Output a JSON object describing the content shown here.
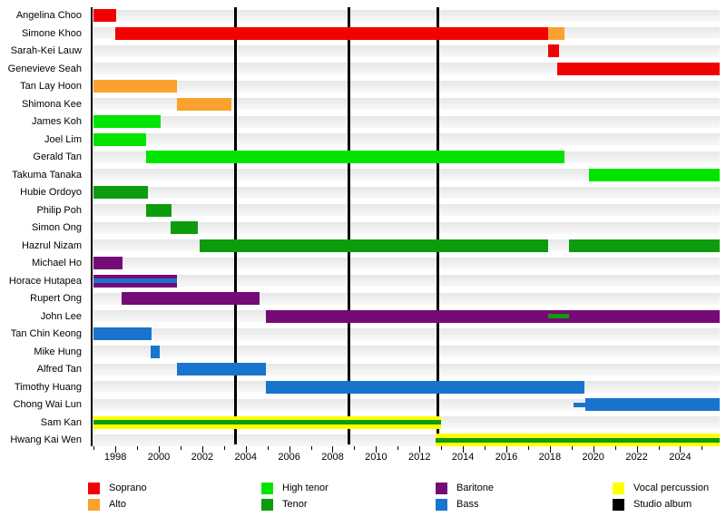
{
  "chart_data": {
    "type": "bar",
    "subtype": "band-member-timeline-gantt",
    "x_axis": {
      "min": 1996.95,
      "max": 2025.82,
      "major_tick_years": [
        1998,
        2000,
        2002,
        2004,
        2006,
        2008,
        2010,
        2012,
        2014,
        2016,
        2018,
        2020,
        2022,
        2024
      ],
      "minor_tick_years": [
        1997,
        1999,
        2001,
        2003,
        2005,
        2007,
        2009,
        2011,
        2013,
        2015,
        2017,
        2019,
        2021,
        2023,
        2025
      ]
    },
    "album_lines": [
      2003.55,
      2008.75,
      2012.85
    ],
    "rows": [
      {
        "name": "Angelina Choo",
        "bars": [
          {
            "start": 1997,
            "end": 1998.05,
            "role": "soprano"
          }
        ]
      },
      {
        "name": "Simone Khoo",
        "bars": [
          {
            "start": 1998.0,
            "end": 2017.92,
            "role": "soprano"
          },
          {
            "start": 2017.92,
            "end": 2018.68,
            "role": "alto"
          }
        ]
      },
      {
        "name": "Sarah-Kei Lauw",
        "bars": [
          {
            "start": 2017.92,
            "end": 2018.42,
            "role": "soprano"
          }
        ]
      },
      {
        "name": "Genevieve Seah",
        "bars": [
          {
            "start": 2018.35,
            "end": "present",
            "role": "soprano"
          }
        ]
      },
      {
        "name": "Tan Lay Hoon",
        "bars": [
          {
            "start": 1997,
            "end": 2000.85,
            "role": "alto"
          }
        ]
      },
      {
        "name": "Shimona Kee",
        "bars": [
          {
            "start": 2000.82,
            "end": 2003.35,
            "role": "alto"
          }
        ]
      },
      {
        "name": "James Koh",
        "bars": [
          {
            "start": 1997,
            "end": 2000.1,
            "role": "high_tenor"
          }
        ]
      },
      {
        "name": "Joel Lim",
        "bars": [
          {
            "start": 1997,
            "end": 1999.42,
            "role": "high_tenor"
          }
        ]
      },
      {
        "name": "Gerald Tan",
        "bars": [
          {
            "start": 1999.4,
            "end": 2018.68,
            "role": "high_tenor"
          }
        ]
      },
      {
        "name": "Takuma Tanaka",
        "bars": [
          {
            "start": 2019.82,
            "end": "present",
            "role": "high_tenor"
          }
        ]
      },
      {
        "name": "Hubie Ordoyo",
        "bars": [
          {
            "start": 1997,
            "end": 1999.48,
            "role": "tenor"
          }
        ]
      },
      {
        "name": "Philip Poh",
        "bars": [
          {
            "start": 1999.4,
            "end": 2000.6,
            "role": "tenor"
          }
        ]
      },
      {
        "name": "Simon Ong",
        "bars": [
          {
            "start": 2000.56,
            "end": 2001.78,
            "role": "tenor"
          }
        ]
      },
      {
        "name": "Hazrul Nizam",
        "bars": [
          {
            "start": 2001.9,
            "end": 2017.92,
            "role": "tenor"
          },
          {
            "start": 2018.9,
            "end": "present",
            "role": "tenor"
          }
        ]
      },
      {
        "name": "Michael Ho",
        "bars": [
          {
            "start": 1997,
            "end": 1998.35,
            "role": "baritone"
          }
        ]
      },
      {
        "name": "Horace Hutapea",
        "bars": [
          {
            "start": 1997,
            "end": 2000.85,
            "role": "baritone",
            "stripe": {
              "role": "bass"
            }
          }
        ]
      },
      {
        "name": "Rupert Ong",
        "bars": [
          {
            "start": 1998.3,
            "end": 2004.62,
            "role": "baritone"
          }
        ]
      },
      {
        "name": "John Lee",
        "bars": [
          {
            "start": 2004.92,
            "end": "present",
            "role": "baritone",
            "stripe": {
              "role": "tenor",
              "start": 2017.92,
              "end": 2018.9
            }
          }
        ]
      },
      {
        "name": "Tan Chin Keong",
        "bars": [
          {
            "start": 1997,
            "end": 1999.68,
            "role": "bass"
          }
        ]
      },
      {
        "name": "Mike Hung",
        "bars": [
          {
            "start": 1999.62,
            "end": 2000.05,
            "role": "bass"
          }
        ]
      },
      {
        "name": "Alfred Tan",
        "bars": [
          {
            "start": 2000.82,
            "end": 2004.92,
            "role": "bass"
          }
        ]
      },
      {
        "name": "Timothy Huang",
        "bars": [
          {
            "start": 2004.92,
            "end": 2019.6,
            "role": "bass"
          }
        ]
      },
      {
        "name": "Chong Wai Lun",
        "bars": [
          {
            "start": 2019.1,
            "end": 2019.62,
            "role": "bass",
            "thin": true
          },
          {
            "start": 2019.62,
            "end": "present",
            "role": "bass"
          }
        ]
      },
      {
        "name": "Sam Kan",
        "bars": [
          {
            "start": 1997,
            "end": 2013.0,
            "role": "vocal_percussion",
            "stripe": {
              "role": "tenor"
            }
          }
        ]
      },
      {
        "name": "Hwang Kai Wen",
        "bars": [
          {
            "start": 2012.75,
            "end": "present",
            "role": "vocal_percussion",
            "stripe": {
              "role": "tenor"
            }
          }
        ]
      }
    ]
  },
  "colors": {
    "soprano": "#f30000",
    "alto": "#fba12d",
    "high_tenor": "#00e400",
    "tenor": "#0d9c0d",
    "baritone": "#750b76",
    "bass": "#1874cd",
    "vocal_percussion": "#ffff00",
    "studio_album": "#000000"
  },
  "legend": {
    "columns": [
      {
        "items": [
          {
            "label": "Soprano",
            "role": "soprano"
          },
          {
            "label": "Alto",
            "role": "alto"
          }
        ]
      },
      {
        "items": [
          {
            "label": "High tenor",
            "role": "high_tenor"
          },
          {
            "label": "Tenor",
            "role": "tenor"
          }
        ]
      },
      {
        "items": [
          {
            "label": "Baritone",
            "role": "baritone"
          },
          {
            "label": "Bass",
            "role": "bass"
          }
        ]
      },
      {
        "items": [
          {
            "label": "Vocal percussion",
            "role": "vocal_percussion"
          },
          {
            "label": "Studio album",
            "role": "studio_album"
          }
        ]
      }
    ]
  }
}
